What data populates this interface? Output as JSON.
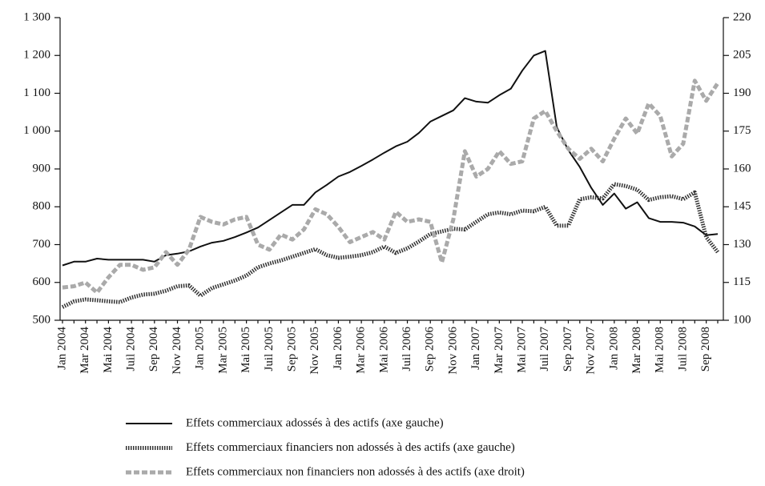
{
  "chart_data": {
    "type": "line",
    "categories": [
      "Jan 2004",
      null,
      "Mar 2004",
      null,
      "Mai 2004",
      null,
      "Juil 2004",
      null,
      "Sep 2004",
      null,
      "Nov 2004",
      null,
      "Jan 2005",
      null,
      "Mar 2005",
      null,
      "Mai 2005",
      null,
      "Juil 2005",
      null,
      "Sep 2005",
      null,
      "Nov 2005",
      null,
      "Jan 2006",
      null,
      "Mar 2006",
      null,
      "Mai 2006",
      null,
      "Juil 2006",
      null,
      "Sep 2006",
      null,
      "Nov 2006",
      null,
      "Jan 2007",
      null,
      "Mar 2007",
      null,
      "Mai 2007",
      null,
      "Juil 2007",
      null,
      "Sep 2007",
      null,
      "Nov 2007",
      null,
      "Jan 2008",
      null,
      "Mar 2008",
      null,
      "Mai 2008",
      null,
      "Juil 2008",
      null,
      "Sep 2008",
      null
    ],
    "series": [
      {
        "name": "Effets commerciaux adossés à des actifs (axe gauche)",
        "color": "#111111",
        "style": "solid",
        "axis": "y",
        "values": [
          645,
          655,
          655,
          663,
          660,
          660,
          660,
          660,
          655,
          672,
          676,
          682,
          695,
          705,
          710,
          720,
          732,
          745,
          765,
          785,
          805,
          805,
          838,
          858,
          880,
          892,
          908,
          925,
          943,
          960,
          972,
          995,
          1025,
          1040,
          1055,
          1087,
          1078,
          1075,
          1095,
          1112,
          1160,
          1200,
          1212,
          1010,
          950,
          905,
          850,
          805,
          835,
          795,
          812,
          770,
          760,
          760,
          758,
          748,
          725,
          728
        ]
      },
      {
        "name": "Effets commerciaux financiers non adossés à des actifs (axe gauche)",
        "color": "#333333",
        "style": "dotted",
        "axis": "y",
        "values": [
          535,
          550,
          555,
          553,
          550,
          548,
          560,
          568,
          570,
          578,
          590,
          592,
          565,
          585,
          595,
          605,
          618,
          640,
          650,
          658,
          668,
          678,
          688,
          672,
          665,
          668,
          672,
          680,
          695,
          678,
          690,
          708,
          728,
          735,
          742,
          740,
          760,
          780,
          785,
          780,
          790,
          788,
          800,
          750,
          750,
          820,
          825,
          822,
          860,
          855,
          845,
          818,
          825,
          828,
          820,
          838,
          720,
          680
        ]
      },
      {
        "name": "Effets commerciaux non financiers non adossés à des actifs (axe droit)",
        "color": "#aaaaaa",
        "style": "dashed",
        "axis": "y2",
        "values": [
          113,
          113.5,
          115,
          111,
          117,
          122,
          122,
          120,
          121,
          127,
          122,
          128,
          141,
          139,
          138,
          140,
          141,
          130,
          128,
          134,
          132,
          136,
          144,
          142,
          137,
          131,
          133,
          135,
          132,
          143,
          139,
          140,
          139,
          123,
          140,
          167,
          157,
          160,
          167,
          162,
          163,
          180,
          183,
          175,
          168,
          164,
          168,
          163,
          172,
          180,
          174,
          186,
          181,
          165,
          170,
          195,
          187,
          194
        ]
      }
    ],
    "ylim": [
      500,
      1300
    ],
    "yticks": [
      500,
      600,
      700,
      800,
      900,
      {
        "value": 1000,
        "label": "1 000"
      },
      {
        "value": 1100,
        "label": "1 100"
      },
      {
        "value": 1200,
        "label": "1 200"
      },
      {
        "value": 1300,
        "label": "1 300"
      }
    ],
    "y2lim": [
      100,
      220
    ],
    "y2ticks": [
      100,
      115,
      130,
      145,
      160,
      175,
      190,
      205,
      220
    ]
  }
}
